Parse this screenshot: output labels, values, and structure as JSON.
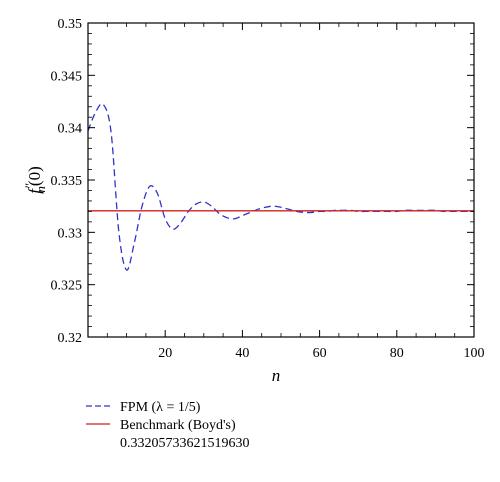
{
  "chart_data": {
    "type": "line",
    "xlabel": "n",
    "ylabel": "f''_n(0)",
    "ylabel_parts": {
      "base": "f",
      "prime": "″",
      "sub": "n",
      "arg": "(0)"
    },
    "xlim": [
      0,
      100
    ],
    "ylim": [
      0.32,
      0.35
    ],
    "x_ticks": [
      20,
      40,
      60,
      80,
      100
    ],
    "x_tick_labels": [
      "20",
      "40",
      "60",
      "80",
      "100"
    ],
    "y_ticks": [
      0.32,
      0.325,
      0.33,
      0.335,
      0.34,
      0.345,
      0.35
    ],
    "y_tick_labels": [
      "0.32",
      "0.325",
      "0.33",
      "0.335",
      "0.34",
      "0.345",
      "0.35"
    ],
    "grid": false,
    "legend_position": "below",
    "series": [
      {
        "name": "FPM (λ = 1/5)",
        "color": "#3333cc",
        "style": "dashed",
        "x": [
          0,
          2,
          4,
          6,
          8,
          10,
          12,
          14,
          16,
          18,
          20,
          22,
          24,
          26,
          28,
          30,
          32,
          34,
          36,
          38,
          40,
          42,
          44,
          46,
          48,
          50,
          52,
          54,
          56,
          58,
          60,
          62,
          64,
          66,
          68,
          70,
          72,
          74,
          76,
          78,
          80,
          82,
          84,
          86,
          88,
          90,
          92,
          94,
          96,
          98,
          100
        ],
        "y": [
          0.3397,
          0.3415,
          0.3422,
          0.3395,
          0.33,
          0.3264,
          0.329,
          0.3325,
          0.3344,
          0.3337,
          0.3313,
          0.3303,
          0.3309,
          0.332,
          0.3327,
          0.3329,
          0.3325,
          0.3318,
          0.3314,
          0.3313,
          0.3316,
          0.3319,
          0.3322,
          0.3324,
          0.3325,
          0.3324,
          0.3322,
          0.332,
          0.3319,
          0.3319,
          0.332,
          0.332,
          0.3321,
          0.3321,
          0.3321,
          0.332,
          0.332,
          0.332,
          0.332,
          0.332,
          0.332,
          0.3321,
          0.3321,
          0.3321,
          0.3321,
          0.3321,
          0.332,
          0.332,
          0.332,
          0.332,
          0.332
        ]
      },
      {
        "name": "Benchmark (Boyd's)",
        "legend_value": "0.33205733621519630",
        "color": "#cc2222",
        "style": "solid",
        "x": [
          0,
          100
        ],
        "y": [
          0.3320573362151963,
          0.3320573362151963
        ]
      }
    ]
  }
}
